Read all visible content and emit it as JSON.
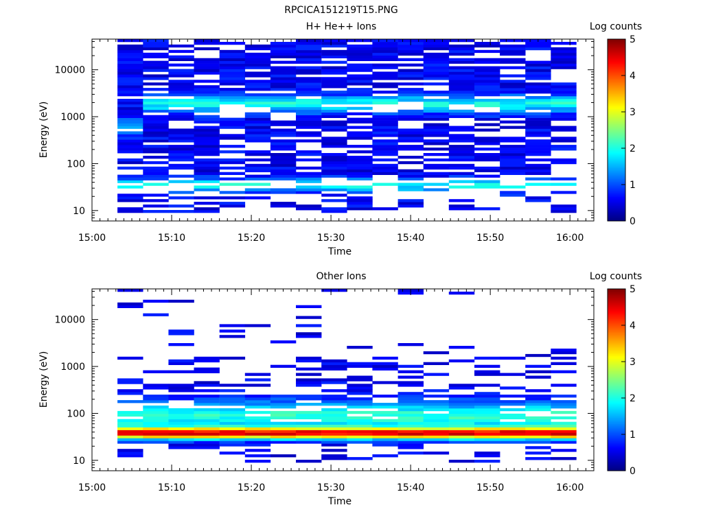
{
  "figure_title": "RPCICA151219T15.PNG",
  "chart_data": [
    {
      "type": "heatmap",
      "title": "H+ He++ Ions",
      "xlabel": "Time",
      "ylabel": "Energy (eV)",
      "x_ticks": [
        "15:00",
        "15:10",
        "15:20",
        "15:30",
        "15:40",
        "15:50",
        "16:00"
      ],
      "x_range": [
        "15:00",
        "16:03"
      ],
      "y_scale": "log",
      "y_ticks": [
        "10",
        "100",
        "1000",
        "10000"
      ],
      "y_range": [
        6,
        45000
      ],
      "colorbar": {
        "label": "Log counts",
        "ticks": [
          "0",
          "1",
          "2",
          "3",
          "4",
          "5"
        ],
        "range": [
          0,
          5
        ],
        "colormap": "jet"
      },
      "time_bins_start_min": [
        3.2,
        6.4,
        9.6,
        12.8,
        16.0,
        19.2,
        22.4,
        25.6,
        28.8,
        32.0,
        35.2,
        38.4,
        41.6,
        44.8,
        48.0,
        51.2,
        54.4,
        57.6
      ],
      "bin_width_min": 3.2,
      "seed": 11
    },
    {
      "type": "heatmap",
      "title": "Other Ions",
      "xlabel": "Time",
      "ylabel": "Energy (eV)",
      "x_ticks": [
        "15:00",
        "15:10",
        "15:20",
        "15:30",
        "15:40",
        "15:50",
        "16:00"
      ],
      "x_range": [
        "15:00",
        "16:03"
      ],
      "y_scale": "log",
      "y_ticks": [
        "10",
        "100",
        "1000",
        "10000"
      ],
      "y_range": [
        6,
        45000
      ],
      "colorbar": {
        "label": "Log counts",
        "ticks": [
          "0",
          "1",
          "2",
          "3",
          "4",
          "5"
        ],
        "range": [
          0,
          5
        ],
        "colormap": "jet"
      },
      "time_bins_start_min": [
        3.2,
        6.4,
        9.6,
        12.8,
        16.0,
        19.2,
        22.4,
        25.6,
        28.8,
        32.0,
        35.2,
        38.4,
        41.6,
        44.8,
        48.0,
        51.2,
        54.4,
        57.6
      ],
      "bin_width_min": 3.2,
      "seed": 29
    }
  ]
}
